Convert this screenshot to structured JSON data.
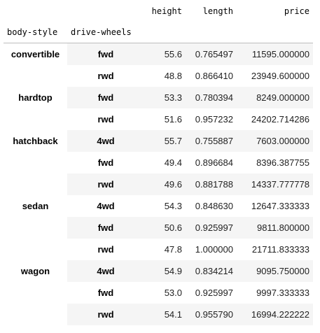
{
  "table": {
    "columns": [
      "height",
      "length",
      "price"
    ],
    "index_names": [
      "body-style",
      "drive-wheels"
    ],
    "groups": [
      {
        "body_style": "convertible",
        "rows": [
          {
            "drive_wheels": "fwd",
            "height": "55.6",
            "length": "0.765497",
            "price": "11595.000000"
          },
          {
            "drive_wheels": "rwd",
            "height": "48.8",
            "length": "0.866410",
            "price": "23949.600000"
          }
        ]
      },
      {
        "body_style": "hardtop",
        "rows": [
          {
            "drive_wheels": "fwd",
            "height": "53.3",
            "length": "0.780394",
            "price": "8249.000000"
          },
          {
            "drive_wheels": "rwd",
            "height": "51.6",
            "length": "0.957232",
            "price": "24202.714286"
          }
        ]
      },
      {
        "body_style": "hatchback",
        "rows": [
          {
            "drive_wheels": "4wd",
            "height": "55.7",
            "length": "0.755887",
            "price": "7603.000000"
          },
          {
            "drive_wheels": "fwd",
            "height": "49.4",
            "length": "0.896684",
            "price": "8396.387755"
          },
          {
            "drive_wheels": "rwd",
            "height": "49.6",
            "length": "0.881788",
            "price": "14337.777778"
          }
        ]
      },
      {
        "body_style": "sedan",
        "rows": [
          {
            "drive_wheels": "4wd",
            "height": "54.3",
            "length": "0.848630",
            "price": "12647.333333"
          },
          {
            "drive_wheels": "fwd",
            "height": "50.6",
            "length": "0.925997",
            "price": "9811.800000"
          },
          {
            "drive_wheels": "rwd",
            "height": "47.8",
            "length": "1.000000",
            "price": "21711.833333"
          }
        ]
      },
      {
        "body_style": "wagon",
        "rows": [
          {
            "drive_wheels": "4wd",
            "height": "54.9",
            "length": "0.834214",
            "price": "9095.750000"
          },
          {
            "drive_wheels": "fwd",
            "height": "53.0",
            "length": "0.925997",
            "price": "9997.333333"
          },
          {
            "drive_wheels": "rwd",
            "height": "54.1",
            "length": "0.955790",
            "price": "16994.222222"
          }
        ]
      }
    ]
  }
}
